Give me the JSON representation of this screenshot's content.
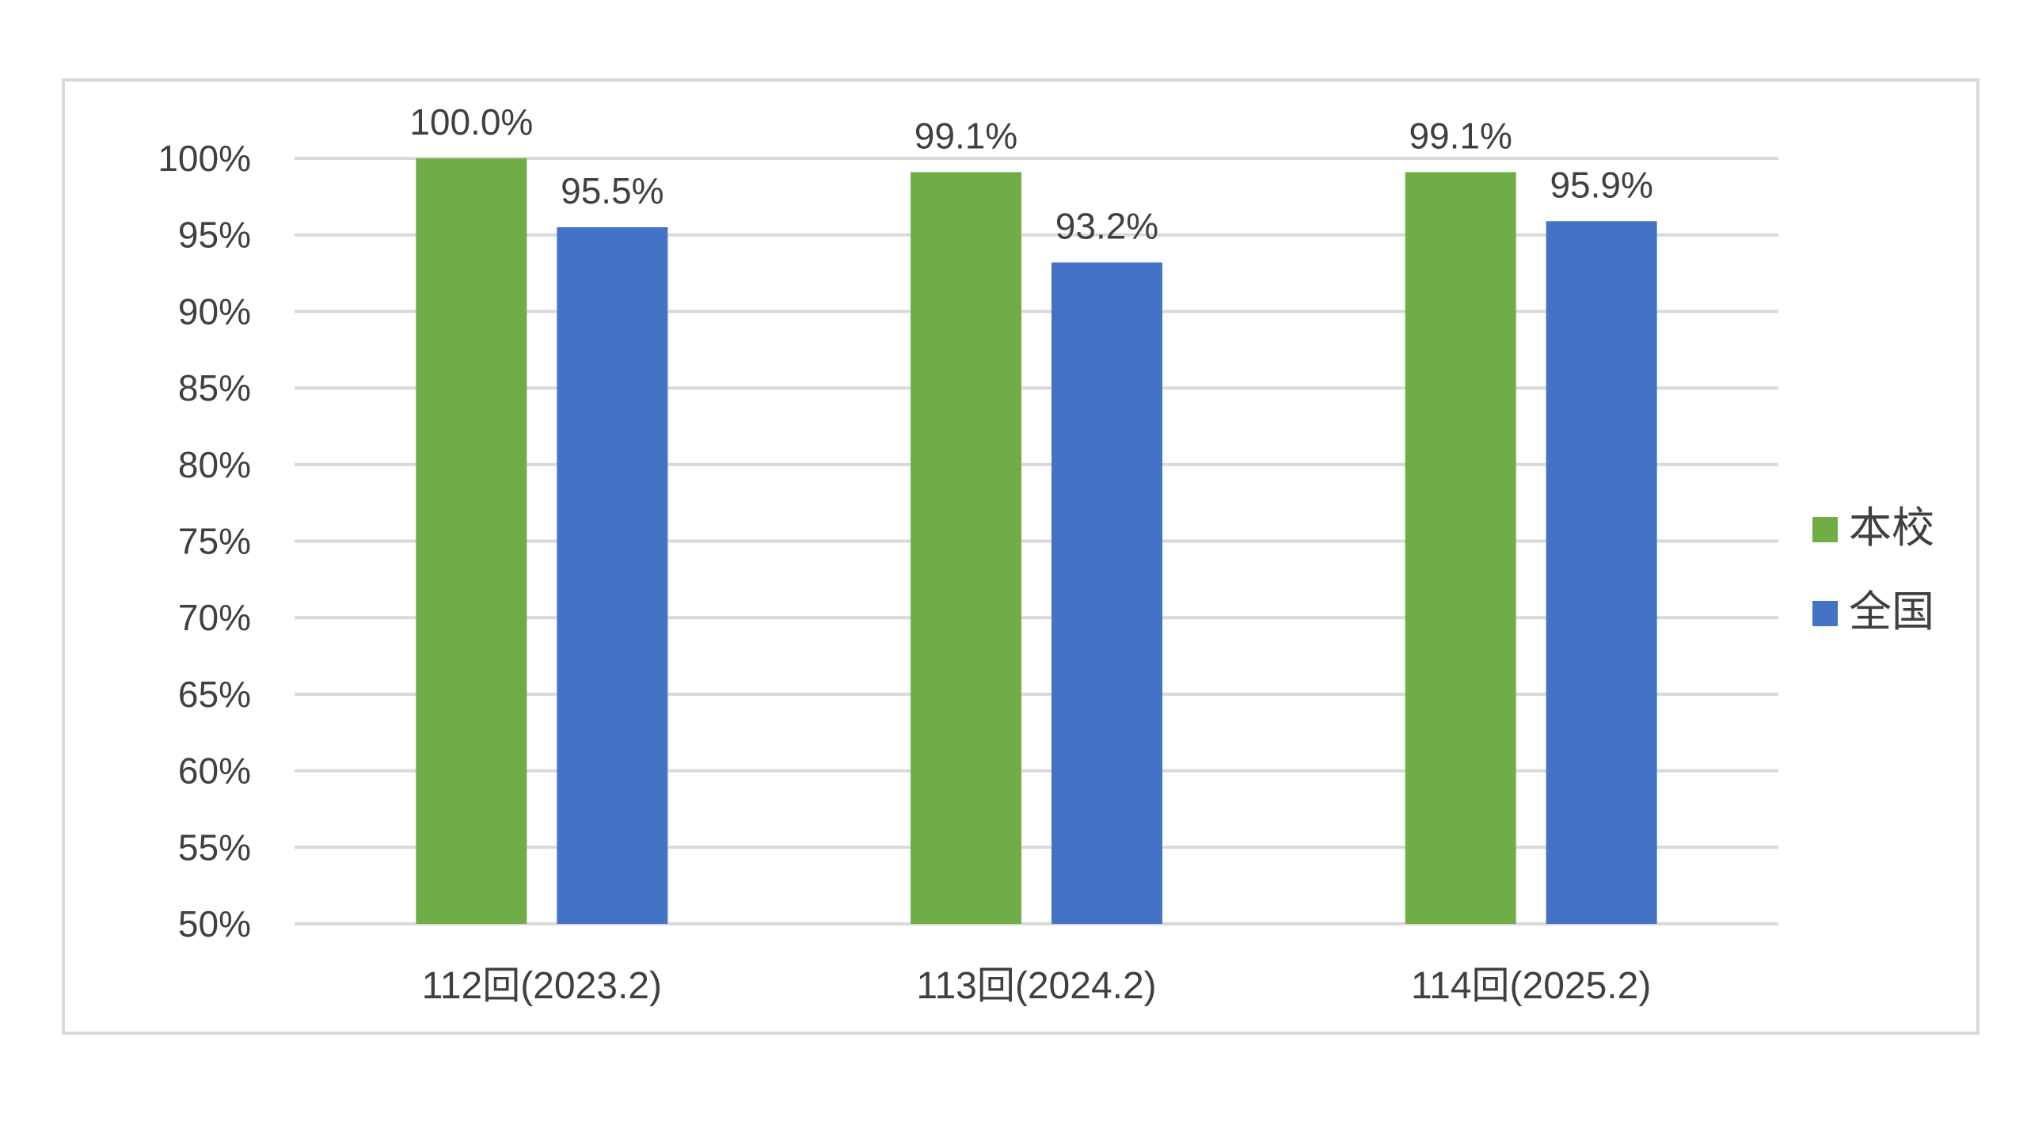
{
  "colors": {
    "series_a": "#70ad47",
    "series_b": "#4472c4",
    "grid": "#d9d9d9",
    "text": "#404040"
  },
  "chart_data": {
    "type": "bar",
    "categories": [
      "112回(2023.2)",
      "113回(2024.2)",
      "114回(2025.2)"
    ],
    "series": [
      {
        "name": "本校",
        "values": [
          100.0,
          99.1,
          99.1
        ],
        "labels": [
          "100.0%",
          "99.1%",
          "99.1%"
        ]
      },
      {
        "name": "全国",
        "values": [
          95.5,
          93.2,
          95.9
        ],
        "labels": [
          "95.5%",
          "93.2%",
          "95.9%"
        ]
      }
    ],
    "ylim": [
      50,
      100
    ],
    "yticks": [
      50,
      55,
      60,
      65,
      70,
      75,
      80,
      85,
      90,
      95,
      100
    ],
    "ytick_labels": [
      "50%",
      "55%",
      "60%",
      "65%",
      "70%",
      "75%",
      "80%",
      "85%",
      "90%",
      "95%",
      "100%"
    ],
    "grid": true,
    "legend_position": "right",
    "title": "",
    "xlabel": "",
    "ylabel": ""
  }
}
